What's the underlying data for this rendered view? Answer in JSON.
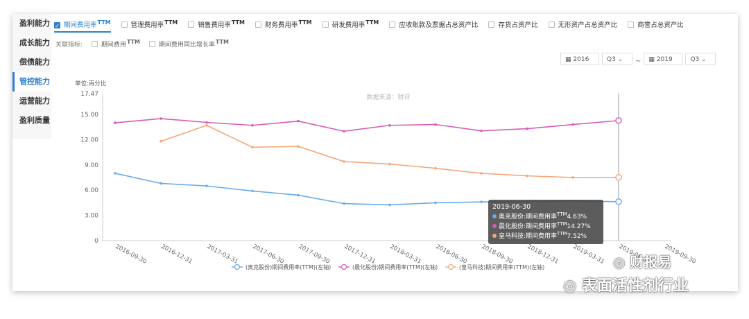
{
  "sidebar": {
    "items": [
      {
        "label": "盈利能力",
        "active": false
      },
      {
        "label": "成长能力",
        "active": false
      },
      {
        "label": "偿债能力",
        "active": false
      },
      {
        "label": "管控能力",
        "active": true
      },
      {
        "label": "运营能力",
        "active": false
      },
      {
        "label": "盈利质量",
        "active": false
      }
    ]
  },
  "tabs": [
    {
      "label": "期间费用率",
      "sup": "TTM",
      "checked": true
    },
    {
      "label": "管理费用率",
      "sup": "TTM",
      "checked": false
    },
    {
      "label": "销售费用率",
      "sup": "TTM",
      "checked": false
    },
    {
      "label": "财务费用率",
      "sup": "TTM",
      "checked": false
    },
    {
      "label": "研发费用率",
      "sup": "TTM",
      "checked": false
    },
    {
      "label": "应收账款及票据占总资产比",
      "sup": "",
      "checked": false
    },
    {
      "label": "存货占资产比",
      "sup": "",
      "checked": false
    },
    {
      "label": "无形资产占总资产比",
      "sup": "",
      "checked": false
    },
    {
      "label": "商誉占总资产比",
      "sup": "",
      "checked": false
    }
  ],
  "related": {
    "label": "关联指标:",
    "options": [
      {
        "label": "期间费用",
        "sup": "TTM"
      },
      {
        "label": "期间费用同比增长率",
        "sup": "TTM"
      }
    ]
  },
  "selectors": {
    "start_year": "2016",
    "start_quarter": "Q3",
    "separator": "~",
    "end_year": "2019",
    "end_quarter": "Q3"
  },
  "colors": {
    "accent": "#2f7fd0",
    "blue": "#6aaae8",
    "magenta": "#d65bb5",
    "orange": "#f4a77a"
  },
  "chart_data": {
    "type": "line",
    "unit_label": "单位:百分比",
    "source_label": "数据来源：财评",
    "ylim": [
      0,
      17.47
    ],
    "yticks": [
      "0",
      "3.00",
      "6.00",
      "9.00",
      "12.00",
      "15.00",
      "17.47"
    ],
    "ytick_values": [
      0,
      3,
      6,
      9,
      12,
      15,
      17.47
    ],
    "x": [
      "2016-09-30",
      "2016-12-31",
      "2017-03-31",
      "2017-06-30",
      "2017-09-30",
      "2017-12-31",
      "2018-03-31",
      "2018-06-30",
      "2018-09-30",
      "2018-12-31",
      "2019-03-31",
      "2019-06-30",
      "2019-09-30"
    ],
    "xtick_labels": [
      "2016-09-30",
      "2016-12-31",
      "2017-03-31",
      "2017-06-30",
      "2017-09-30",
      "2017-12-31",
      "2018-03-31",
      "2018-06-30",
      "2018-09-30",
      "2018-12-31",
      "2019-03-31",
      "2019-06-30",
      "2019-09-30"
    ],
    "grid": false,
    "legend_position": "bottom",
    "series": [
      {
        "name": "(奥克股份)期间费用率(TTM)(左轴)",
        "color": "#6aaae8",
        "values": [
          8.0,
          6.8,
          6.5,
          5.9,
          5.4,
          4.4,
          4.25,
          4.5,
          4.6,
          4.65,
          4.7,
          4.63,
          null
        ]
      },
      {
        "name": "(晨化股份)期间费用率(TTM)(左轴)",
        "color": "#d65bb5",
        "values": [
          14.0,
          14.5,
          14.05,
          13.7,
          14.2,
          13.0,
          13.7,
          13.8,
          13.05,
          13.3,
          13.8,
          14.27,
          null
        ]
      },
      {
        "name": "(皇马科技)期间费用率(TTM)(左轴)",
        "color": "#f4a77a",
        "values": [
          null,
          11.8,
          13.7,
          11.1,
          11.2,
          9.4,
          9.1,
          8.6,
          8.0,
          7.7,
          7.5,
          7.52,
          null
        ]
      }
    ],
    "tooltip": {
      "date": "2019-06-30",
      "rows": [
        {
          "label": "奥克股份:期间费用率",
          "sup": "TTM",
          "value": "4.63%",
          "color": "#6aaae8"
        },
        {
          "label": "晨化股份:期间费用率",
          "sup": "TTM",
          "value": "14.27%",
          "color": "#d65bb5"
        },
        {
          "label": "皇马科技:期间费用率",
          "sup": "TTM",
          "value": "7.52%",
          "color": "#f4a77a"
        }
      ]
    },
    "cursor_index": 11
  },
  "watermarks": {
    "line1": "财报易",
    "line2": "表面活性剂行业"
  }
}
